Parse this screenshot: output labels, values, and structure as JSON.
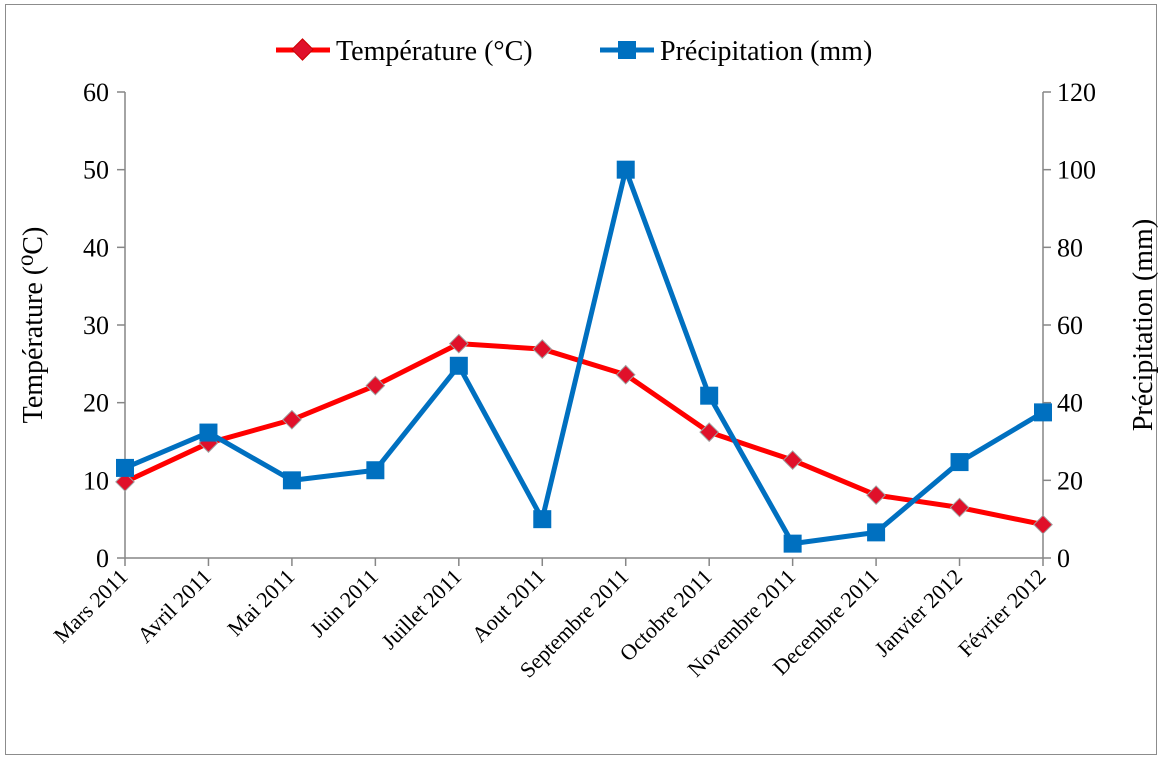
{
  "chart_data": {
    "type": "line",
    "categories": [
      "Mars 2011",
      "Avril 2011",
      "Mai 2011",
      "Juin 2011",
      "Juillet 2011",
      "Aout 2011",
      "Septembre 2011",
      "Octobre 2011",
      "Novembre 2011",
      "Decembre 2011",
      "Janvier 2012",
      "Février 2012"
    ],
    "series": [
      {
        "name": "Température (°C)",
        "axis": "left",
        "color": "#ff0000",
        "marker": "diamond",
        "marker_fill": "#e0102a",
        "values": [
          9.8,
          14.8,
          17.8,
          22.2,
          27.6,
          26.9,
          23.6,
          16.2,
          12.6,
          8.1,
          6.5,
          4.3
        ]
      },
      {
        "name": "Précipitation (mm)",
        "axis": "right",
        "color": "#0070c0",
        "marker": "square",
        "values": [
          23.2,
          32.3,
          20.0,
          22.6,
          49.5,
          10.0,
          100.0,
          41.8,
          3.7,
          6.6,
          24.7,
          37.5
        ]
      }
    ],
    "ylabel_left": "Température (⁰C)",
    "ylabel_right": "Précipitation (mm)",
    "ylim_left": [
      0,
      60
    ],
    "ylim_right": [
      0,
      120
    ],
    "yticks_left": [
      "0",
      "10",
      "20",
      "30",
      "40",
      "50",
      "60"
    ],
    "yticks_right": [
      "0",
      "20",
      "40",
      "60",
      "80",
      "100",
      "120"
    ],
    "grid": false,
    "legend_position": "top"
  }
}
